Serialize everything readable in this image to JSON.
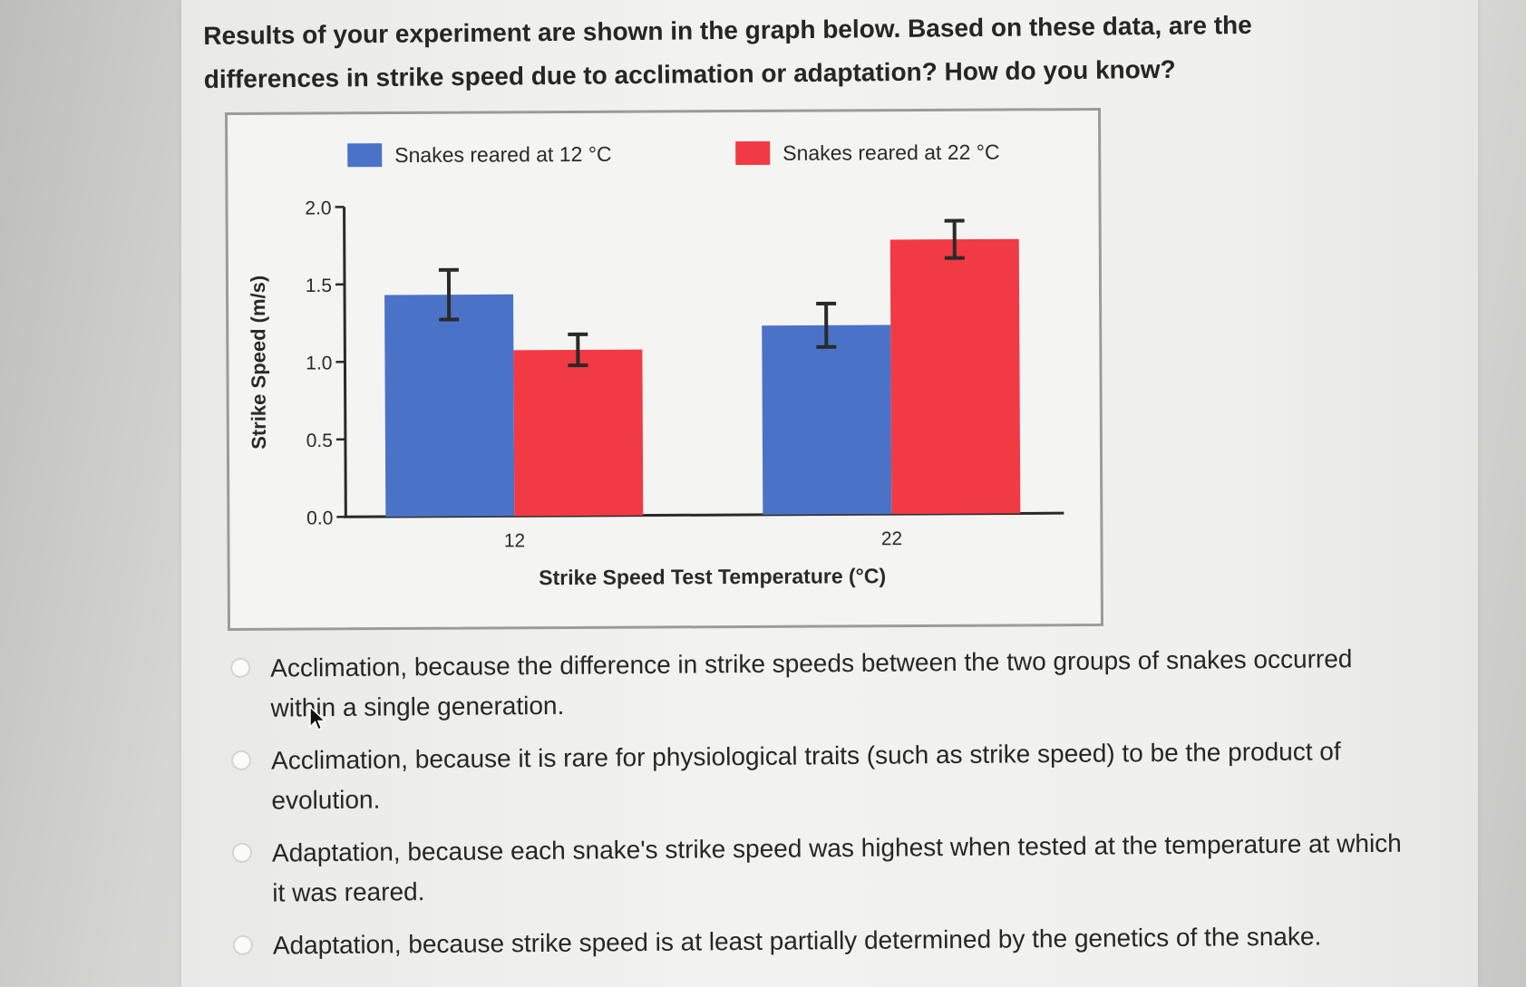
{
  "question": {
    "text": "Results of your experiment are shown in the graph below. Based on these data, are the differences in strike speed due to acclimation or adaptation? How do you know?"
  },
  "chart_data": {
    "type": "bar",
    "categories": [
      "12",
      "22"
    ],
    "series": [
      {
        "name": "Snakes reared at 12 °C",
        "color": "#4a73c8",
        "values": [
          1.43,
          1.22
        ],
        "errors": [
          0.16,
          0.14
        ]
      },
      {
        "name": "Snakes reared at 22 °C",
        "color": "#f23a44",
        "values": [
          1.07,
          1.77
        ],
        "errors": [
          0.1,
          0.12
        ]
      }
    ],
    "xlabel": "Strike Speed Test Temperature (°C)",
    "ylabel": "Strike Speed (m/s)",
    "ylim": [
      0,
      2.0
    ],
    "yticks": [
      "0.0",
      "0.5",
      "1.0",
      "1.5",
      "2.0"
    ],
    "ytick_values": [
      0,
      0.5,
      1.0,
      1.5,
      2.0
    ],
    "legend_position": "top",
    "grid": false
  },
  "choices": [
    {
      "label": "Acclimation, because the difference in strike speeds between the two groups of snakes occurred within a single generation."
    },
    {
      "label": "Acclimation, because it is rare for physiological traits (such as strike speed) to be the product of evolution."
    },
    {
      "label": "Adaptation, because each snake's strike speed was highest when tested at the temperature at which it was reared."
    },
    {
      "label": "Adaptation, because strike speed is at least partially determined by the genetics of the snake."
    }
  ]
}
